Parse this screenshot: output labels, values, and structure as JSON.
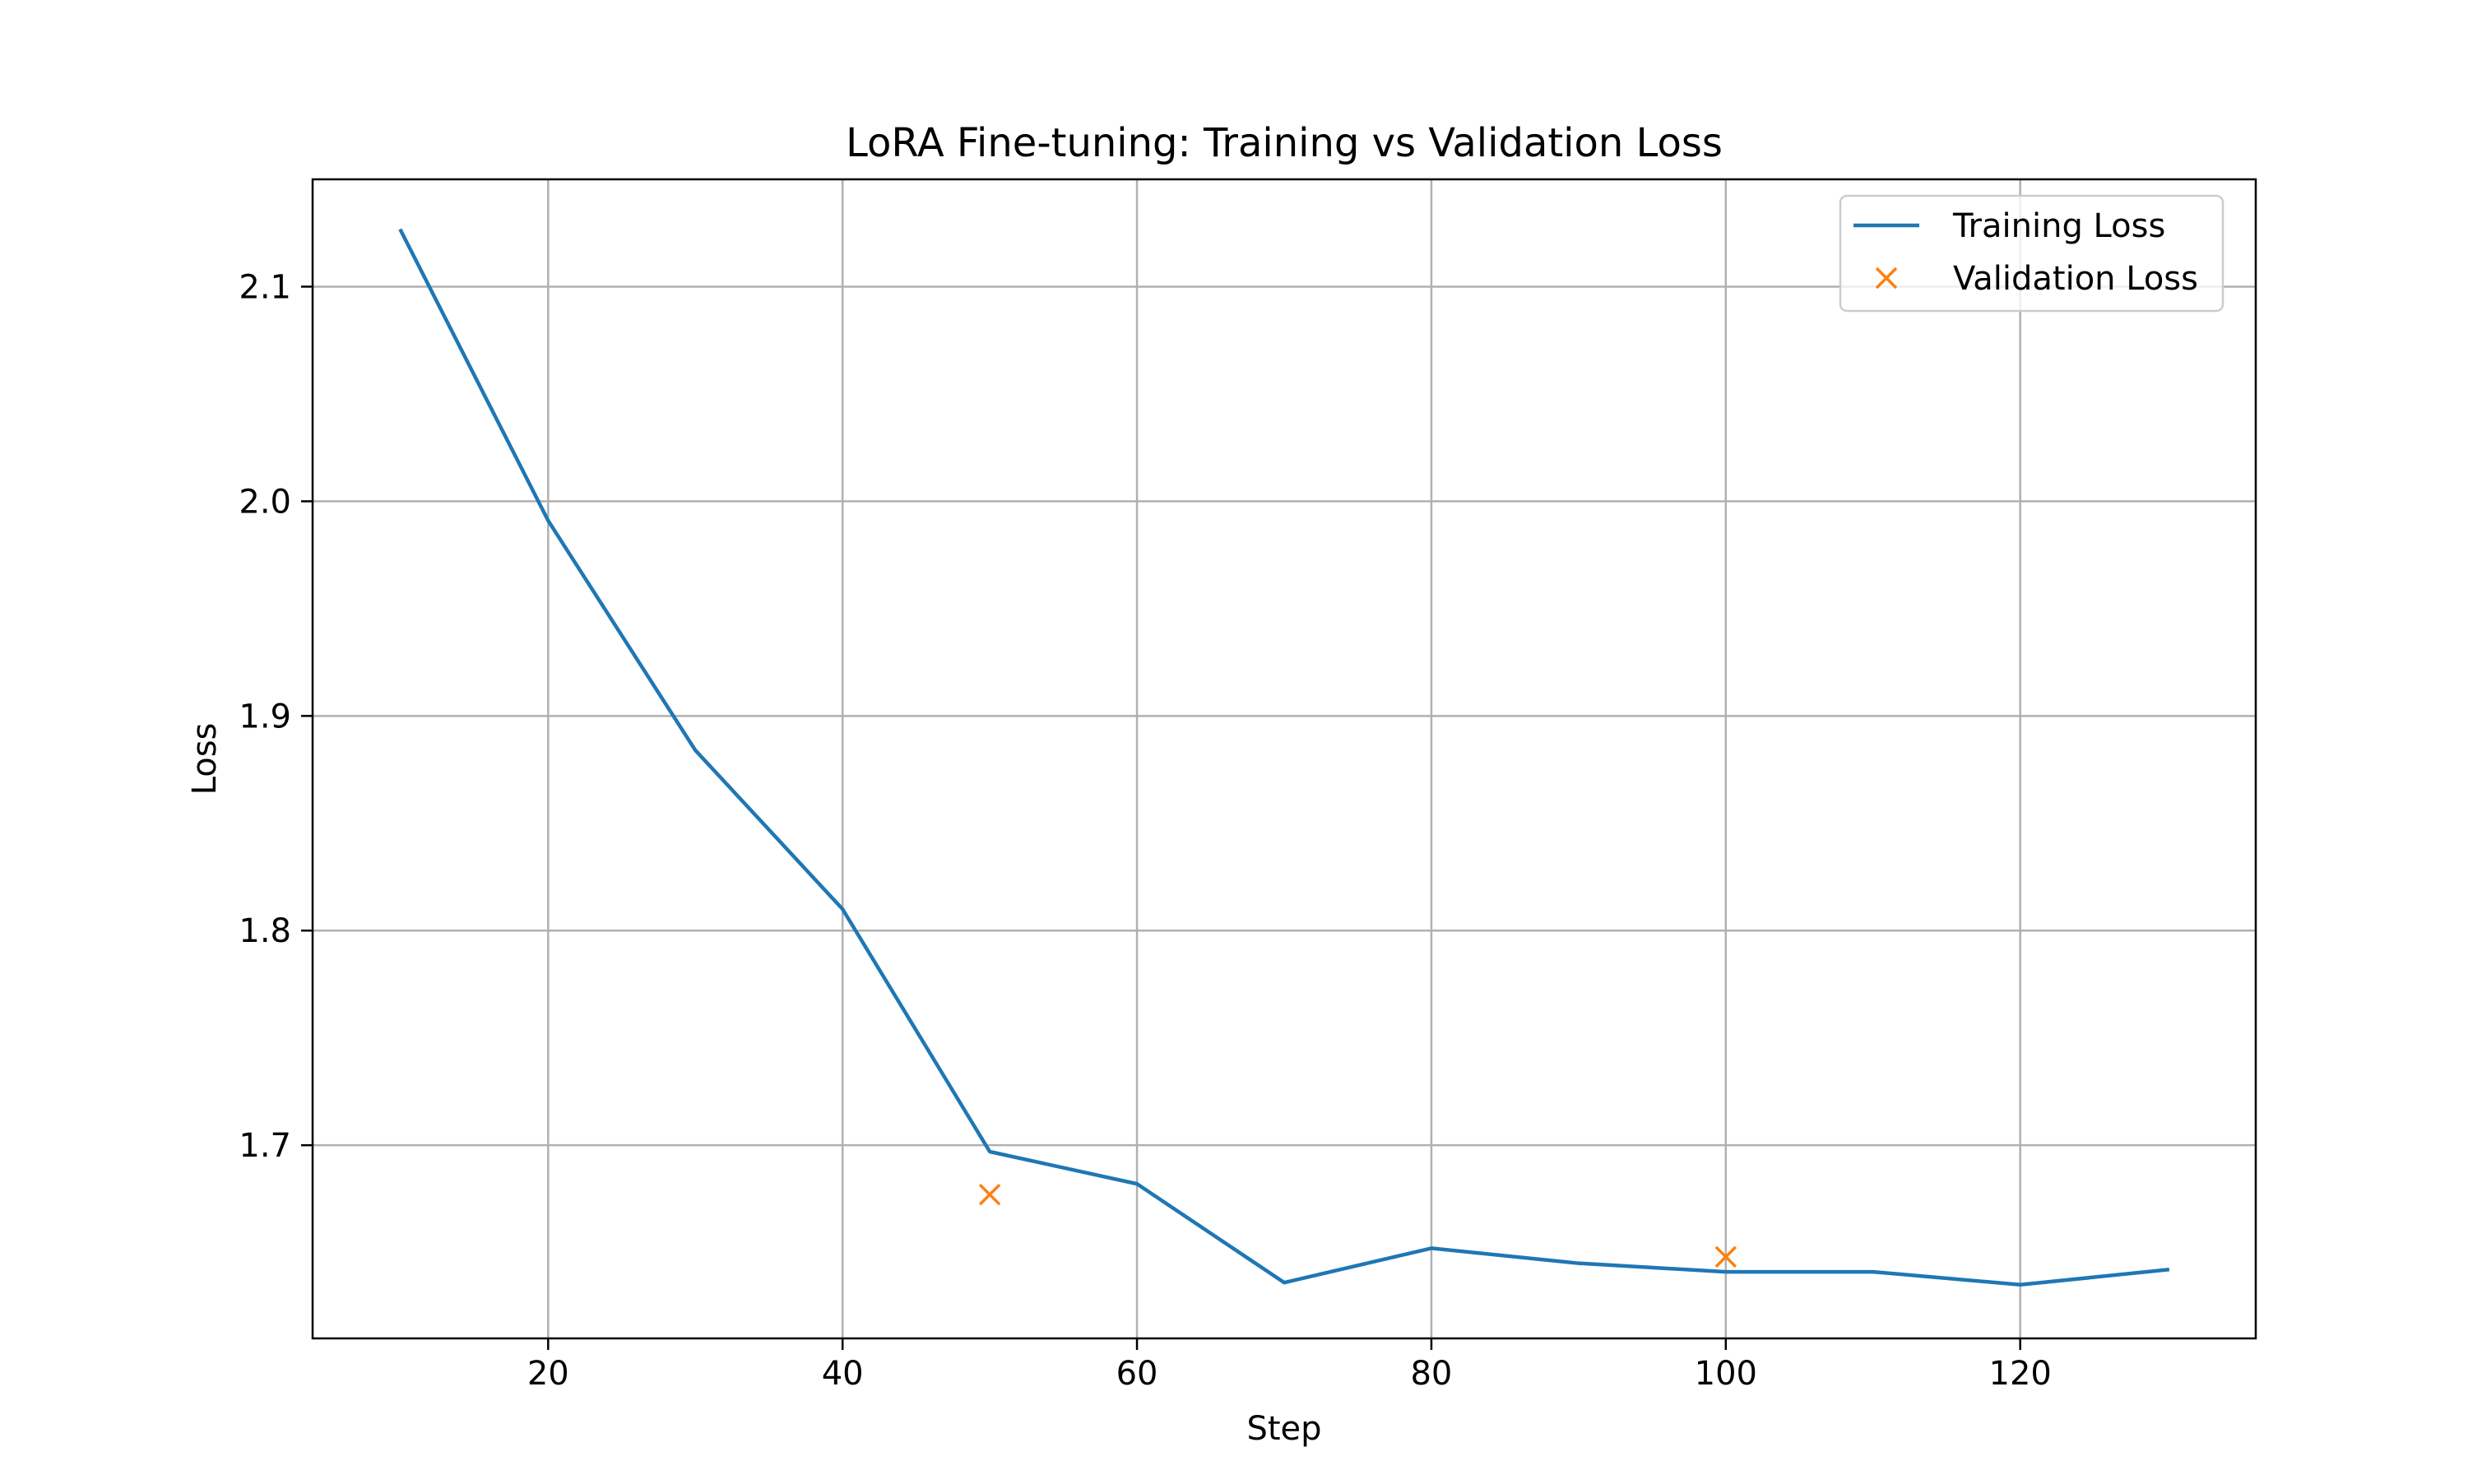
{
  "chart_data": {
    "type": "line",
    "title": "LoRA Fine-tuning: Training vs Validation Loss",
    "xlabel": "Step",
    "ylabel": "Loss",
    "xlim": [
      4,
      136
    ],
    "ylim": [
      1.61,
      2.15
    ],
    "xticks": [
      20,
      40,
      60,
      80,
      100,
      120
    ],
    "yticks": [
      1.7,
      1.8,
      1.9,
      2.0,
      2.1
    ],
    "grid": true,
    "legend_position": "top-right",
    "series": [
      {
        "name": "Training Loss",
        "style": "line",
        "color": "#1f77b4",
        "x": [
          10,
          20,
          30,
          40,
          50,
          60,
          70,
          80,
          90,
          100,
          110,
          120,
          130
        ],
        "y": [
          2.126,
          1.991,
          1.884,
          1.81,
          1.697,
          1.682,
          1.636,
          1.652,
          1.645,
          1.641,
          1.641,
          1.635,
          1.642
        ]
      },
      {
        "name": "Validation Loss",
        "style": "marker-x",
        "color": "#ff7f0e",
        "x": [
          50,
          100
        ],
        "y": [
          1.677,
          1.648
        ]
      }
    ]
  }
}
